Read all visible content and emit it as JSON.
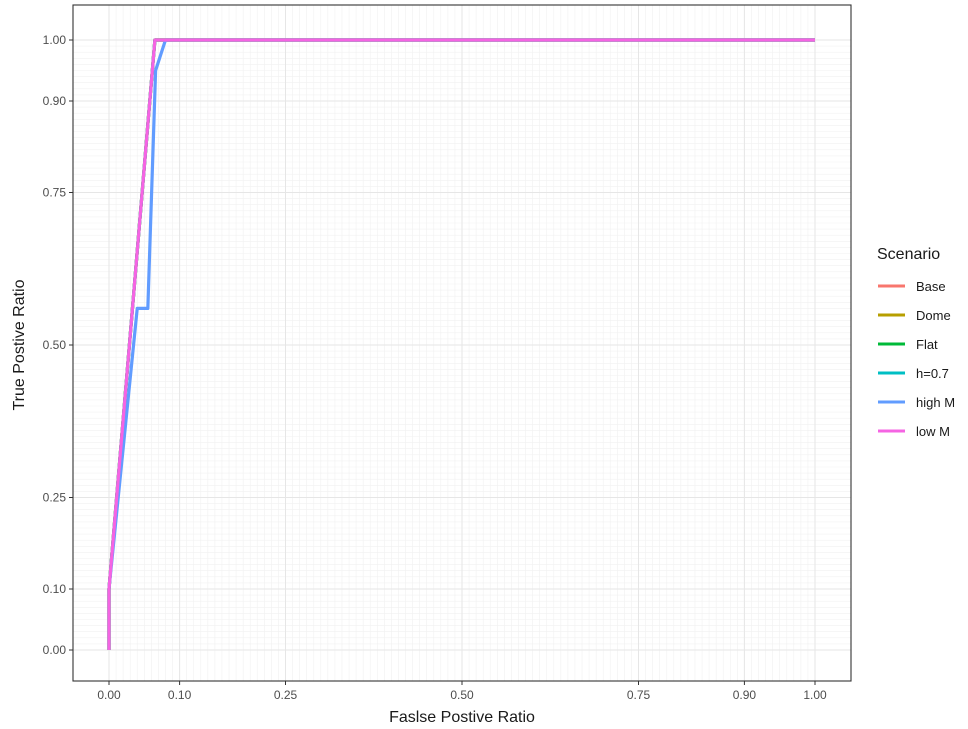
{
  "chart_data": {
    "type": "line",
    "title": "",
    "xlabel": "Faslse Postive Ratio",
    "ylabel": "True Postive Ratio",
    "xlim": [
      0,
      1
    ],
    "ylim": [
      0,
      1
    ],
    "x_ticks": [
      0.0,
      0.1,
      0.25,
      0.5,
      0.75,
      0.9,
      1.0
    ],
    "x_tick_labels": [
      "0.00",
      "0.10",
      "0.25",
      "0.50",
      "0.75",
      "0.90",
      "1.00"
    ],
    "y_ticks": [
      0.0,
      0.1,
      0.25,
      0.5,
      0.75,
      0.9,
      1.0
    ],
    "y_tick_labels": [
      "0.00",
      "0.10",
      "0.25",
      "0.50",
      "0.75",
      "0.90",
      "1.00"
    ],
    "grid": true,
    "legend": {
      "title": "Scenario",
      "placement": "right"
    },
    "series": [
      {
        "name": "Base",
        "color": "#F8766D",
        "x": [
          0.0,
          0.0,
          0.065,
          1.0
        ],
        "y": [
          0.0,
          0.1,
          1.0,
          1.0
        ]
      },
      {
        "name": "Dome",
        "color": "#B79F00",
        "x": [
          0.0,
          0.0,
          0.065,
          1.0
        ],
        "y": [
          0.0,
          0.1,
          1.0,
          1.0
        ]
      },
      {
        "name": "Flat",
        "color": "#00BA38",
        "x": [
          0.0,
          0.0,
          0.065,
          1.0
        ],
        "y": [
          0.0,
          0.1,
          1.0,
          1.0
        ]
      },
      {
        "name": "h=0.7",
        "color": "#00BFC4",
        "x": [
          0.0,
          0.0,
          0.065,
          1.0
        ],
        "y": [
          0.0,
          0.1,
          1.0,
          1.0
        ]
      },
      {
        "name": "high M",
        "color": "#619CFF",
        "x": [
          0.0,
          0.0,
          0.04,
          0.055,
          0.066,
          0.08,
          1.0
        ],
        "y": [
          0.0,
          0.1,
          0.56,
          0.56,
          0.95,
          1.0,
          1.0
        ]
      },
      {
        "name": "low M",
        "color": "#F564E3",
        "x": [
          0.0,
          0.0,
          0.065,
          1.0
        ],
        "y": [
          0.0,
          0.1,
          1.0,
          1.0
        ]
      }
    ]
  }
}
